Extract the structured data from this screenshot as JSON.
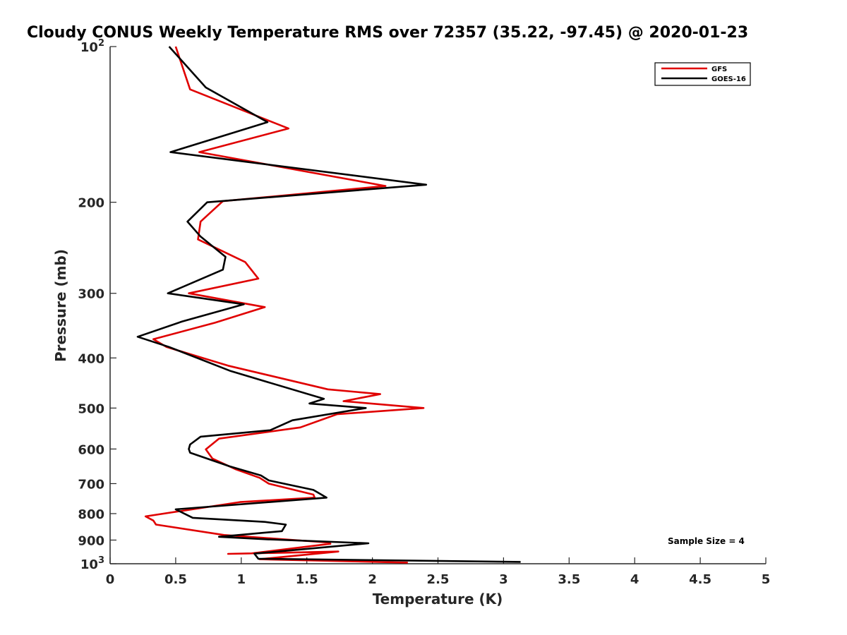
{
  "chart_data": {
    "type": "line",
    "title": "Cloudy CONUS Weekly Temperature RMS over 72357 (35.22, -97.45) @ 2020-01-23",
    "xlabel": "Temperature (K)",
    "ylabel": "Pressure (mb)",
    "xlim": [
      0,
      5
    ],
    "ylim": [
      100,
      1000
    ],
    "y_scale": "log",
    "y_direction": "reversed",
    "x_ticks": [
      "0",
      "0.5",
      "1",
      "1.5",
      "2",
      "2.5",
      "3",
      "3.5",
      "4",
      "4.5",
      "5"
    ],
    "y_ticks": [
      {
        "value": 100,
        "base": "10",
        "exp": "2"
      },
      {
        "value": 200,
        "label": "200"
      },
      {
        "value": 300,
        "label": "300"
      },
      {
        "value": 400,
        "label": "400"
      },
      {
        "value": 500,
        "label": "500"
      },
      {
        "value": 600,
        "label": "600"
      },
      {
        "value": 700,
        "label": "700"
      },
      {
        "value": 800,
        "label": "800"
      },
      {
        "value": 900,
        "label": "900"
      },
      {
        "value": 1000,
        "base": "10",
        "exp": "3"
      }
    ],
    "grid": false,
    "legend_position": "top-right",
    "annotation": "Sample Size = 4",
    "series": [
      {
        "name": "GFS",
        "color": "#e00000",
        "points": [
          [
            0.5,
            100
          ],
          [
            0.61,
            121
          ],
          [
            1.36,
            144
          ],
          [
            0.68,
            160
          ],
          [
            2.1,
            186
          ],
          [
            0.86,
            199
          ],
          [
            0.69,
            218
          ],
          [
            0.67,
            236
          ],
          [
            1.03,
            261
          ],
          [
            1.13,
            281
          ],
          [
            0.6,
            300
          ],
          [
            1.18,
            319
          ],
          [
            0.8,
            342
          ],
          [
            0.33,
            368
          ],
          [
            0.43,
            381
          ],
          [
            0.9,
            414
          ],
          [
            1.66,
            460
          ],
          [
            2.06,
            470
          ],
          [
            1.78,
            485
          ],
          [
            2.39,
            500
          ],
          [
            1.73,
            514
          ],
          [
            1.45,
            545
          ],
          [
            0.83,
            573
          ],
          [
            0.73,
            601
          ],
          [
            0.78,
            626
          ],
          [
            0.96,
            657
          ],
          [
            1.14,
            682
          ],
          [
            1.21,
            700
          ],
          [
            1.55,
            735
          ],
          [
            1.56,
            745
          ],
          [
            0.99,
            760
          ],
          [
            0.27,
            810
          ],
          [
            0.33,
            825
          ],
          [
            0.35,
            840
          ],
          [
            0.87,
            880
          ],
          [
            1.67,
            910
          ],
          [
            1.68,
            915
          ],
          [
            1.08,
            955
          ],
          [
            0.9,
            957
          ],
          [
            1.74,
            947
          ],
          [
            1.14,
            980
          ],
          [
            2.27,
            995
          ]
        ]
      },
      {
        "name": "GOES-16",
        "color": "#000000",
        "points": [
          [
            0.45,
            100
          ],
          [
            0.73,
            120
          ],
          [
            1.2,
            140
          ],
          [
            0.46,
            160
          ],
          [
            2.41,
            185
          ],
          [
            0.74,
            200
          ],
          [
            0.59,
            218
          ],
          [
            0.69,
            233
          ],
          [
            0.88,
            255
          ],
          [
            0.86,
            270
          ],
          [
            0.44,
            300
          ],
          [
            1.02,
            315
          ],
          [
            0.55,
            340
          ],
          [
            0.21,
            364
          ],
          [
            0.45,
            381
          ],
          [
            0.92,
            424
          ],
          [
            1.63,
            480
          ],
          [
            1.52,
            490
          ],
          [
            1.95,
            500
          ],
          [
            1.39,
            528
          ],
          [
            1.22,
            552
          ],
          [
            0.69,
            568
          ],
          [
            0.61,
            588
          ],
          [
            0.6,
            600
          ],
          [
            0.61,
            610
          ],
          [
            0.91,
            648
          ],
          [
            1.15,
            675
          ],
          [
            1.21,
            690
          ],
          [
            1.55,
            720
          ],
          [
            1.65,
            745
          ],
          [
            0.5,
            785
          ],
          [
            0.63,
            815
          ],
          [
            1.18,
            830
          ],
          [
            1.34,
            840
          ],
          [
            1.31,
            865
          ],
          [
            0.83,
            887
          ],
          [
            1.2,
            897
          ],
          [
            1.97,
            913
          ],
          [
            1.1,
            956
          ],
          [
            1.13,
            978
          ],
          [
            3.13,
            992
          ]
        ]
      }
    ]
  }
}
